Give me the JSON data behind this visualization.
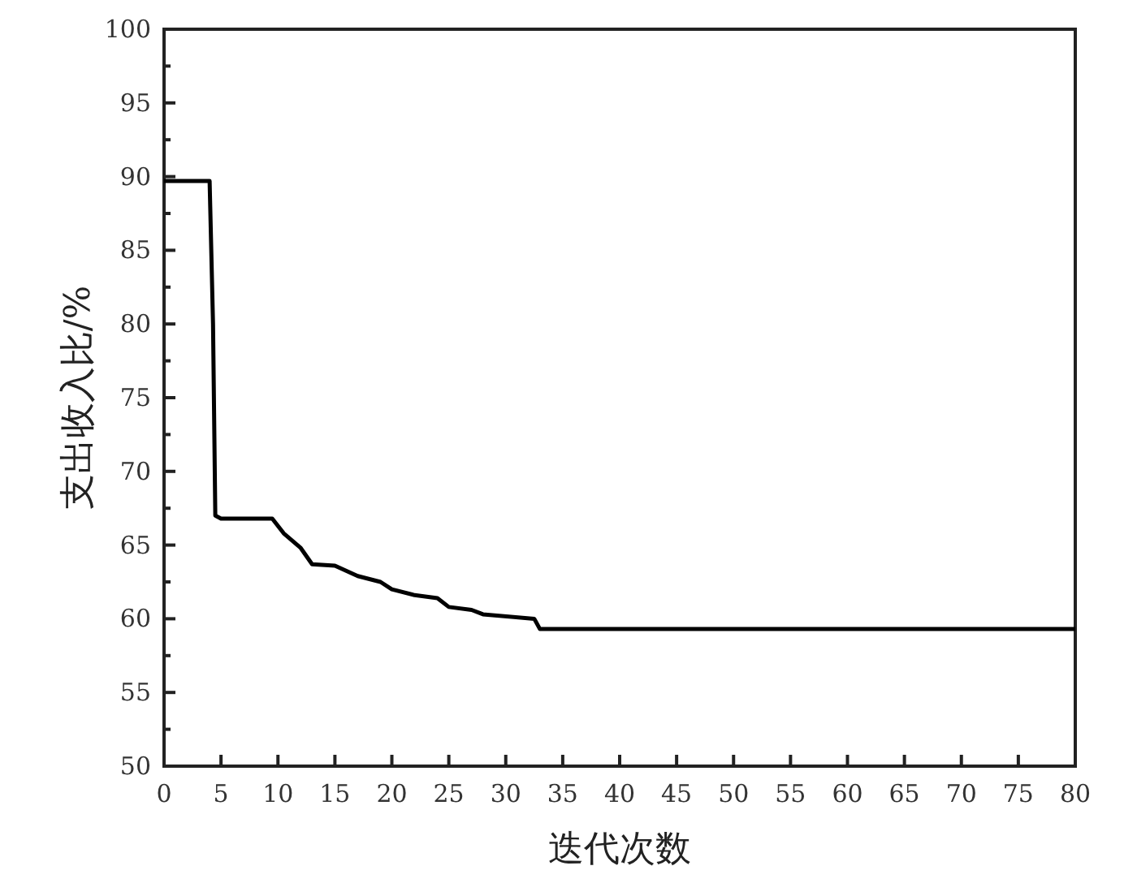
{
  "chart_data": {
    "type": "line",
    "xlabel": "迭代次数",
    "ylabel": "支出收入比/%",
    "x": [
      0,
      4,
      4.3,
      4.5,
      5,
      9.5,
      10.5,
      12,
      13,
      15,
      17,
      19,
      20,
      22,
      24,
      25,
      27,
      28,
      32.5,
      33,
      80
    ],
    "series": [
      {
        "color": "#000000",
        "values": [
          89.7,
          89.7,
          80,
          67,
          66.8,
          66.8,
          65.8,
          64.8,
          63.7,
          63.6,
          62.9,
          62.5,
          62,
          61.6,
          61.4,
          60.8,
          60.6,
          60.3,
          60,
          59.3,
          59.3
        ]
      }
    ],
    "xlim": [
      0,
      80
    ],
    "xticks": [
      0,
      5,
      10,
      15,
      20,
      25,
      30,
      35,
      40,
      45,
      50,
      55,
      60,
      65,
      70,
      75,
      80
    ],
    "ylim": [
      50,
      100
    ],
    "yticks": [
      50,
      {
        "value": 52.5,
        "label": null
      },
      55,
      {
        "value": 57.5,
        "label": null
      },
      60,
      {
        "value": 62.5,
        "label": null
      },
      65,
      {
        "value": 67.5,
        "label": null
      },
      70,
      {
        "value": 72.5,
        "label": null
      },
      75,
      {
        "value": 77.5,
        "label": null
      },
      80,
      {
        "value": 82.5,
        "label": null
      },
      85,
      {
        "value": 87.5,
        "label": null
      },
      90,
      {
        "value": 92.5,
        "label": null
      },
      95,
      {
        "value": 97.5,
        "label": null
      },
      100
    ],
    "grid": false,
    "marker": "none",
    "line_style": "solid"
  }
}
